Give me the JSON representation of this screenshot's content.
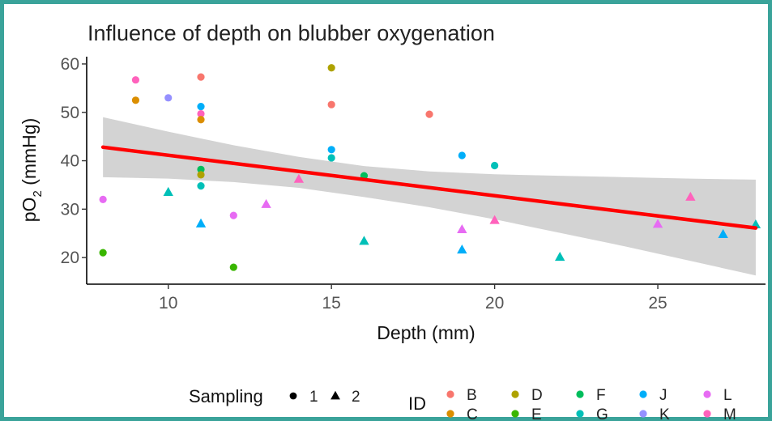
{
  "chart_data": {
    "type": "scatter",
    "title": "Influence of depth on blubber oxygenation",
    "xlabel": "Depth (mm)",
    "ylabel_main": "pO",
    "ylabel_sub": "2",
    "ylabel_unit": " (mmHg)",
    "xlim": [
      7.5,
      28.3
    ],
    "ylim": [
      14.5,
      61.5
    ],
    "xticks": [
      10,
      15,
      20,
      25
    ],
    "yticks": [
      20,
      30,
      40,
      50,
      60
    ],
    "grid": false,
    "trend": {
      "color": "#ff0000",
      "line": [
        [
          8,
          42.8
        ],
        [
          28,
          26.1
        ]
      ],
      "band_upper": [
        [
          8,
          49.0
        ],
        [
          10,
          46.0
        ],
        [
          12,
          43.2
        ],
        [
          14,
          40.8
        ],
        [
          16,
          38.9
        ],
        [
          18,
          37.8
        ],
        [
          20,
          37.2
        ],
        [
          22,
          36.9
        ],
        [
          24,
          36.6
        ],
        [
          26,
          36.3
        ],
        [
          28,
          36.1
        ]
      ],
      "band_lower": [
        [
          8,
          36.6
        ],
        [
          10,
          36.3
        ],
        [
          12,
          35.6
        ],
        [
          14,
          34.4
        ],
        [
          16,
          32.5
        ],
        [
          18,
          30.4
        ],
        [
          20,
          27.9
        ],
        [
          22,
          25.1
        ],
        [
          24,
          22.3
        ],
        [
          26,
          19.3
        ],
        [
          28,
          16.3
        ]
      ]
    },
    "ids": [
      {
        "id": "B",
        "color": "#f8766d"
      },
      {
        "id": "C",
        "color": "#db8e00"
      },
      {
        "id": "D",
        "color": "#aea200"
      },
      {
        "id": "E",
        "color": "#39b600"
      },
      {
        "id": "F",
        "color": "#00bd5c"
      },
      {
        "id": "G",
        "color": "#00c0b8"
      },
      {
        "id": "J",
        "color": "#00aef9"
      },
      {
        "id": "K",
        "color": "#9590ff"
      },
      {
        "id": "L",
        "color": "#e76bf3"
      },
      {
        "id": "M",
        "color": "#ff62bc"
      }
    ],
    "points": [
      {
        "x": 8,
        "y": 32,
        "id": "L",
        "sampling": 1
      },
      {
        "x": 8,
        "y": 21,
        "id": "E",
        "sampling": 1
      },
      {
        "x": 9,
        "y": 56.7,
        "id": "M",
        "sampling": 1
      },
      {
        "x": 9,
        "y": 52.5,
        "id": "C",
        "sampling": 1
      },
      {
        "x": 10,
        "y": 53,
        "id": "K",
        "sampling": 1
      },
      {
        "x": 10,
        "y": 33.5,
        "id": "G",
        "sampling": 2
      },
      {
        "x": 11,
        "y": 57.3,
        "id": "B",
        "sampling": 1
      },
      {
        "x": 11,
        "y": 51.2,
        "id": "J",
        "sampling": 1
      },
      {
        "x": 11,
        "y": 49.7,
        "id": "M",
        "sampling": 1
      },
      {
        "x": 11,
        "y": 48.5,
        "id": "C",
        "sampling": 1
      },
      {
        "x": 11,
        "y": 38.2,
        "id": "F",
        "sampling": 1
      },
      {
        "x": 11,
        "y": 37.1,
        "id": "D",
        "sampling": 1
      },
      {
        "x": 11,
        "y": 34.8,
        "id": "G",
        "sampling": 1
      },
      {
        "x": 11,
        "y": 27,
        "id": "J",
        "sampling": 2
      },
      {
        "x": 12,
        "y": 28.7,
        "id": "L",
        "sampling": 1
      },
      {
        "x": 12,
        "y": 18,
        "id": "E",
        "sampling": 1
      },
      {
        "x": 13,
        "y": 31,
        "id": "L",
        "sampling": 2
      },
      {
        "x": 14,
        "y": 36.2,
        "id": "M",
        "sampling": 2
      },
      {
        "x": 15,
        "y": 59.2,
        "id": "D",
        "sampling": 1
      },
      {
        "x": 15,
        "y": 51.6,
        "id": "B",
        "sampling": 1
      },
      {
        "x": 15,
        "y": 42.3,
        "id": "J",
        "sampling": 1
      },
      {
        "x": 15,
        "y": 40.6,
        "id": "G",
        "sampling": 1
      },
      {
        "x": 16,
        "y": 36.9,
        "id": "F",
        "sampling": 1
      },
      {
        "x": 16,
        "y": 23.4,
        "id": "G",
        "sampling": 2
      },
      {
        "x": 18,
        "y": 49.6,
        "id": "B",
        "sampling": 1
      },
      {
        "x": 19,
        "y": 41.1,
        "id": "J",
        "sampling": 1
      },
      {
        "x": 19,
        "y": 25.8,
        "id": "L",
        "sampling": 2
      },
      {
        "x": 19,
        "y": 21.6,
        "id": "J",
        "sampling": 2
      },
      {
        "x": 20,
        "y": 39,
        "id": "G",
        "sampling": 1
      },
      {
        "x": 20,
        "y": 27.7,
        "id": "M",
        "sampling": 2
      },
      {
        "x": 22,
        "y": 20.1,
        "id": "G",
        "sampling": 2
      },
      {
        "x": 25,
        "y": 26.9,
        "id": "L",
        "sampling": 2
      },
      {
        "x": 26,
        "y": 32.5,
        "id": "M",
        "sampling": 2
      },
      {
        "x": 27,
        "y": 24.8,
        "id": "J",
        "sampling": 2
      },
      {
        "x": 28,
        "y": 26.8,
        "id": "G",
        "sampling": 2
      }
    ],
    "legend_sampling": {
      "title": "Sampling",
      "items": [
        {
          "label": "1",
          "shape": "circle"
        },
        {
          "label": "2",
          "shape": "triangle"
        }
      ]
    },
    "legend_id": {
      "title": "ID"
    },
    "legend_placement": "bottom"
  }
}
